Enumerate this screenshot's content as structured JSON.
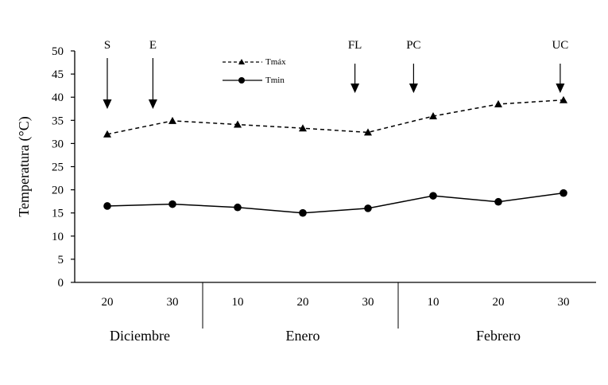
{
  "chart_data": {
    "type": "line",
    "ylabel": "Temperatura (°C)",
    "ylim": [
      0,
      50
    ],
    "yticks": [
      "0",
      "5",
      "10",
      "15",
      "20",
      "25",
      "30",
      "35",
      "40",
      "45",
      "50"
    ],
    "categories": [
      "20",
      "30",
      "10",
      "20",
      "30",
      "10",
      "20",
      "30"
    ],
    "months": [
      {
        "name": "Diciembre",
        "start": 0,
        "end": 1
      },
      {
        "name": "Enero",
        "start": 2,
        "end": 4
      },
      {
        "name": "Febrero",
        "start": 5,
        "end": 7
      }
    ],
    "series": [
      {
        "name": "Tmáx",
        "marker": "triangle",
        "dash": "dashed",
        "values": [
          32.0,
          34.9,
          34.1,
          33.3,
          32.4,
          35.9,
          38.5,
          39.4
        ]
      },
      {
        "name": "Tmin",
        "marker": "circle",
        "dash": "solid",
        "values": [
          16.5,
          16.9,
          16.2,
          15.0,
          16.0,
          18.7,
          17.4,
          19.3
        ]
      }
    ],
    "annotations": [
      {
        "label": "S",
        "x": 0.0
      },
      {
        "label": "E",
        "x": 0.7
      },
      {
        "label": "FL",
        "x": 3.8
      },
      {
        "label": "PC",
        "x": 4.7
      },
      {
        "label": "UC",
        "x": 6.95
      }
    ],
    "grid": false,
    "legend_position": "top-left"
  }
}
